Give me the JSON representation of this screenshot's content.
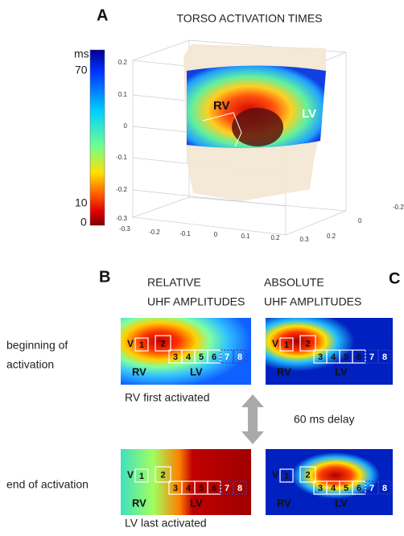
{
  "panel_a": {
    "label": "A",
    "title": "TORSO ACTIVATION TIMES",
    "colorbar": {
      "unit": "ms",
      "ticks": [
        "70",
        "10",
        "0"
      ]
    },
    "z_ticks": [
      "0.2",
      "0.1",
      "0",
      "-0.1",
      "-0.2",
      "-0.3"
    ],
    "x_ticks": [
      "-0.3",
      "-0.2",
      "-0.1",
      "0",
      "0.1",
      "0.2",
      "0.3"
    ],
    "y_ticks": [
      "0.2",
      "0",
      "-0.2"
    ],
    "regions": [
      "RV",
      "LV"
    ]
  },
  "panel_b": {
    "label": "B",
    "title_lines": [
      "RELATIVE",
      "UHF AMPLITUDES"
    ]
  },
  "panel_c": {
    "label": "C",
    "title_lines": [
      "ABSOLUTE",
      "UHF AMPLITUDES"
    ]
  },
  "rows": [
    "beginning of",
    "activation",
    "end of activation"
  ],
  "electrodes": [
    "V",
    "1",
    "2",
    "3",
    "4",
    "5",
    "6",
    "7",
    "8"
  ],
  "regions": [
    "RV",
    "LV"
  ],
  "captions": {
    "first": "RV first activated",
    "delay": "60 ms delay",
    "last": "LV last activated"
  }
}
